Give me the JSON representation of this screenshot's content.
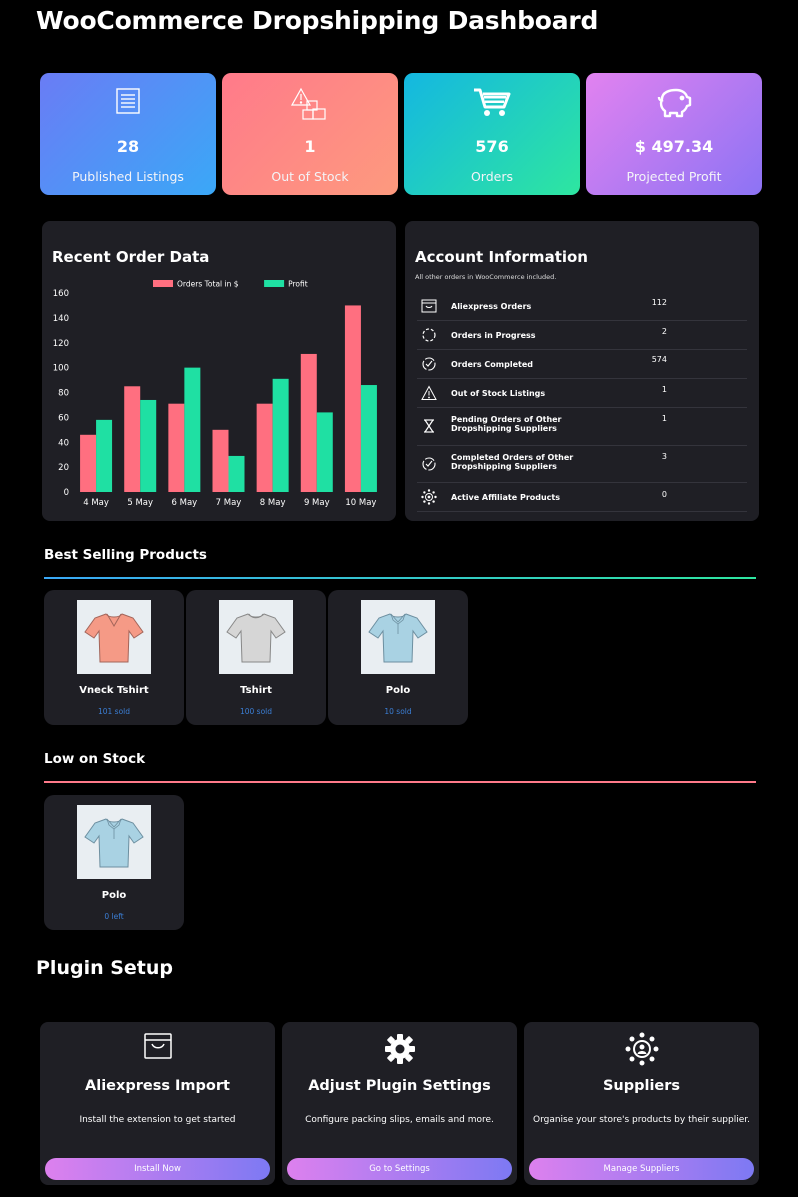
{
  "page_title": "WooCommerce Dropshipping Dashboard",
  "stats": [
    {
      "value": "28",
      "label": "Published Listings",
      "icon": "listing-icon"
    },
    {
      "value": "1",
      "label": "Out of Stock",
      "icon": "out-of-stock-icon"
    },
    {
      "value": "576",
      "label": "Orders",
      "icon": "cart-icon"
    },
    {
      "value": "$ 497.34",
      "label": "Projected Profit",
      "icon": "piggy-bank-icon"
    }
  ],
  "recent_orders": {
    "title": "Recent Order Data"
  },
  "chart_data": {
    "type": "bar",
    "categories": [
      "4 May",
      "5 May",
      "6 May",
      "7 May",
      "8 May",
      "9 May",
      "10 May"
    ],
    "series": [
      {
        "name": "Orders Total in $",
        "color": "#ff6f80",
        "values": [
          46,
          85,
          71,
          50,
          71,
          111,
          150
        ]
      },
      {
        "name": "Profit",
        "color": "#1fe0a3",
        "values": [
          58,
          74,
          100,
          29,
          91,
          64,
          86
        ]
      }
    ],
    "ylim": [
      0,
      160
    ],
    "yticks": [
      0,
      20,
      40,
      60,
      80,
      100,
      120,
      140,
      160
    ],
    "legend": "top",
    "grid": false
  },
  "account": {
    "title": "Account Information",
    "note": "All other orders in WooCommerce included.",
    "rows": [
      {
        "label": "Aliexpress Orders",
        "value": "112",
        "icon": "envelope-icon"
      },
      {
        "label": "Orders in Progress",
        "value": "2",
        "icon": "progress-circle-icon"
      },
      {
        "label": "Orders Completed",
        "value": "574",
        "icon": "check-circle-icon"
      },
      {
        "label": "Out of Stock Listings",
        "value": "1",
        "icon": "warning-icon"
      },
      {
        "label": "Pending Orders of Other Dropshipping Suppliers",
        "value": "1",
        "icon": "hourglass-icon"
      },
      {
        "label": "Completed Orders of Other Dropshipping Suppliers",
        "value": "3",
        "icon": "check-circle-icon"
      },
      {
        "label": "Active Affiliate Products",
        "value": "0",
        "icon": "affiliate-icon"
      }
    ]
  },
  "best_selling": {
    "title": "Best Selling Products",
    "items": [
      {
        "name": "Vneck Tshirt",
        "sub": "101 sold",
        "color": "#f59a86"
      },
      {
        "name": "Tshirt",
        "sub": "100 sold",
        "color": "#d6d6d6"
      },
      {
        "name": "Polo",
        "sub": "10 sold",
        "color": "#a9d2e3"
      }
    ]
  },
  "low_stock": {
    "title": "Low on Stock",
    "items": [
      {
        "name": "Polo",
        "sub": "0 left",
        "color": "#a9d2e3"
      }
    ]
  },
  "setup": {
    "title": "Plugin Setup",
    "cards": [
      {
        "title": "Aliexpress Import",
        "desc": "Install the extension to get started",
        "button": "Install Now",
        "icon": "envelope-icon"
      },
      {
        "title": "Adjust Plugin Settings",
        "desc": "Configure packing slips, emails and more.",
        "button": "Go to Settings",
        "icon": "gear-icon"
      },
      {
        "title": "Suppliers",
        "desc": "Organise your store's products by their supplier.",
        "button": "Manage Suppliers",
        "icon": "suppliers-icon"
      }
    ]
  },
  "colors": {
    "best_rule": [
      "#3aa8f7",
      "#2ee6a0"
    ],
    "low_rule": "#ff7a8a"
  }
}
